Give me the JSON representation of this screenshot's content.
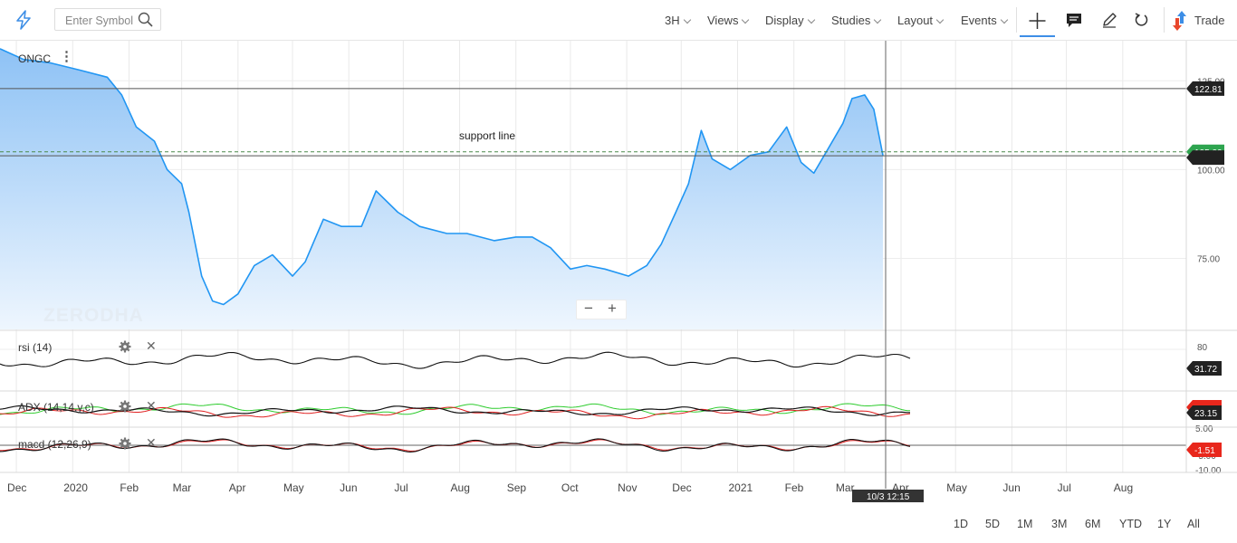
{
  "toolbar": {
    "search_placeholder": "Enter Symbol",
    "menus": [
      "3H",
      "Views",
      "Display",
      "Studies",
      "Layout",
      "Events"
    ],
    "trade_label": "Trade",
    "icons": [
      "lightning-logo-icon",
      "search-icon",
      "crosshair-icon",
      "comment-icon",
      "pencil-icon",
      "undo-icon",
      "trade-arrows-icon"
    ]
  },
  "symbol": "ONGC",
  "watermark": "ZERODHA",
  "annotation": "support line",
  "date_time_tag": "10/3 12:15",
  "range_buttons": [
    "1D",
    "5D",
    "1M",
    "3M",
    "6M",
    "YTD",
    "1Y",
    "All"
  ],
  "zoom": {
    "out": "−",
    "in": "+"
  },
  "panels": {
    "rsi": {
      "label": "rsi (14)",
      "value_tag": "31.72",
      "tick": "80"
    },
    "adx": {
      "label": "ADX (14,14,y,c)",
      "value_tag": "23.15"
    },
    "macd": {
      "label": "macd (12,26,9)",
      "value_tag": "-1.51",
      "ticks": [
        "5.00",
        "-5.00",
        "-10.00"
      ]
    }
  },
  "colors": {
    "price": "#2196f3",
    "up_tag": "#2ea44f",
    "down_tag": "#e8271c",
    "dark_tag": "#222222"
  },
  "chart_data": {
    "type": "area",
    "title": "",
    "ylim": [
      55,
      135
    ],
    "y_ticks": [
      "125.00",
      "100.00",
      "75.00"
    ],
    "price_tags": [
      "122.81",
      "105.00"
    ],
    "horizontal_lines": [
      {
        "value": 122.81,
        "style": "solid"
      },
      {
        "value": 105.0,
        "style": "dashed"
      },
      {
        "value": 103.9,
        "style": "solid"
      }
    ],
    "x_tick_labels": [
      "Dec",
      "2020",
      "Feb",
      "Mar",
      "Apr",
      "May",
      "Jun",
      "Jul",
      "Aug",
      "Sep",
      "Oct",
      "Nov",
      "Dec",
      "2021",
      "Feb",
      "Mar",
      "Apr",
      "May",
      "Jun",
      "Jul",
      "Aug"
    ],
    "x_domain": [
      "2019-11-22",
      "2021-09-05"
    ],
    "x_tick_dates": [
      "2019-12-01",
      "2020-01-01",
      "2020-02-01",
      "2020-03-01",
      "2020-04-01",
      "2020-05-01",
      "2020-06-01",
      "2020-07-01",
      "2020-08-01",
      "2020-09-01",
      "2020-10-01",
      "2020-11-01",
      "2020-12-01",
      "2021-01-01",
      "2021-02-01",
      "2021-03-01",
      "2021-04-01",
      "2021-05-01",
      "2021-06-01",
      "2021-07-01",
      "2021-08-01"
    ],
    "series": [
      {
        "x": [
          "2019-11-22",
          "2019-12-05",
          "2019-12-20",
          "2020-01-05",
          "2020-01-20",
          "2020-01-28",
          "2020-02-05",
          "2020-02-15",
          "2020-02-22",
          "2020-03-01",
          "2020-03-05",
          "2020-03-12",
          "2020-03-18",
          "2020-03-24",
          "2020-04-01",
          "2020-04-10",
          "2020-04-20",
          "2020-05-01",
          "2020-05-08",
          "2020-05-18",
          "2020-05-28",
          "2020-06-08",
          "2020-06-16",
          "2020-06-28",
          "2020-07-10",
          "2020-07-25",
          "2020-08-05",
          "2020-08-20",
          "2020-09-01",
          "2020-09-10",
          "2020-09-20",
          "2020-10-01",
          "2020-10-10",
          "2020-10-20",
          "2020-11-02",
          "2020-11-12",
          "2020-11-20",
          "2020-11-28",
          "2020-12-05",
          "2020-12-12",
          "2020-12-18",
          "2020-12-28",
          "2021-01-08",
          "2021-01-18",
          "2021-01-28",
          "2021-02-05",
          "2021-02-12",
          "2021-02-20",
          "2021-02-28",
          "2021-03-05",
          "2021-03-12",
          "2021-03-17",
          "2021-03-22"
        ],
        "y": [
          134,
          131,
          130,
          128,
          126,
          121,
          112,
          108,
          100,
          96,
          88,
          70,
          63,
          62,
          65,
          73,
          76,
          70,
          74,
          86,
          84,
          84,
          94,
          88,
          84,
          82,
          82,
          80,
          81,
          81,
          78,
          72,
          73,
          72,
          70,
          73,
          79,
          88,
          96,
          111,
          103,
          100,
          104,
          105,
          112,
          102,
          99,
          106,
          113,
          120,
          121,
          117,
          104
        ]
      }
    ]
  }
}
